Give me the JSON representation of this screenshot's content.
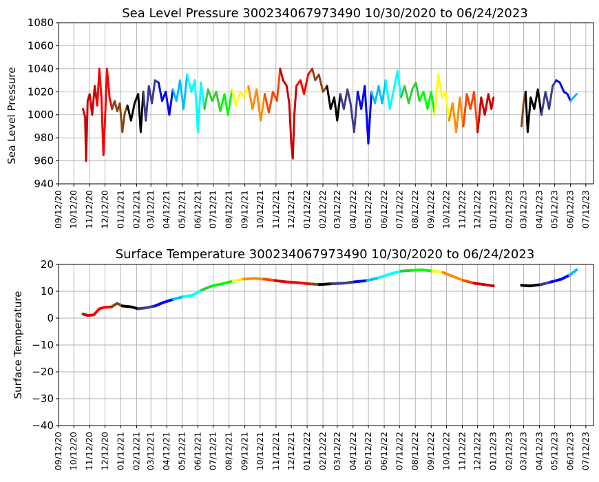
{
  "chart_data": [
    {
      "type": "line",
      "title": "Sea Level Pressure 300234067973490  10/30/2020 to 06/24/2023",
      "xlabel": "",
      "ylabel": "Sea Level Pressure",
      "xlim": [
        "09/12/20",
        "07/27/23"
      ],
      "ylim": [
        940,
        1080
      ],
      "yticks": [
        940,
        960,
        980,
        1000,
        1020,
        1040,
        1060,
        1080
      ],
      "xtick_labels": [
        "09/12/20",
        "10/12/20",
        "11/12/20",
        "12/12/20",
        "01/12/21",
        "02/12/21",
        "03/12/21",
        "04/12/21",
        "05/12/21",
        "06/12/21",
        "07/12/21",
        "08/12/21",
        "09/12/21",
        "10/12/21",
        "11/12/21",
        "12/12/21",
        "01/12/22",
        "02/12/22",
        "03/12/22",
        "04/12/22",
        "05/12/22",
        "06/12/22",
        "07/12/22",
        "08/12/22",
        "09/12/22",
        "10/12/22",
        "11/12/22",
        "12/12/22",
        "01/12/23",
        "02/12/23",
        "03/12/23",
        "04/12/23",
        "05/12/23",
        "06/12/23",
        "07/12/23"
      ],
      "grid": true,
      "series_colors": [
        "#cc0000",
        "#ff0000",
        "#8b4513",
        "#000000",
        "#3b3b8f",
        "#0000ff",
        "#00bfff",
        "#00ffff",
        "#32cd32",
        "#00ff00",
        "#ffff00",
        "#ff8c00",
        "#ff4500"
      ],
      "points": [
        [
          "10/30/20",
          1005
        ],
        [
          "11/03/20",
          998
        ],
        [
          "11/05/20",
          960
        ],
        [
          "11/08/20",
          1012
        ],
        [
          "11/12/20",
          1018
        ],
        [
          "11/17/20",
          1000
        ],
        [
          "11/22/20",
          1025
        ],
        [
          "11/27/20",
          1008
        ],
        [
          "12/01/20",
          1040
        ],
        [
          "12/05/20",
          1015
        ],
        [
          "12/09/20",
          965
        ],
        [
          "12/12/20",
          995
        ],
        [
          "12/16/20",
          1040
        ],
        [
          "12/21/20",
          1015
        ],
        [
          "12/26/20",
          1005
        ],
        [
          "12/31/20",
          1012
        ],
        [
          "01/05/21",
          1003
        ],
        [
          "01/10/21",
          1010
        ],
        [
          "01/15/21",
          985
        ],
        [
          "01/20/21",
          1002
        ],
        [
          "01/25/21",
          1008
        ],
        [
          "02/01/21",
          995
        ],
        [
          "02/08/21",
          1010
        ],
        [
          "02/15/21",
          1018
        ],
        [
          "02/20/21",
          985
        ],
        [
          "02/25/21",
          1020
        ],
        [
          "03/02/21",
          995
        ],
        [
          "03/08/21",
          1025
        ],
        [
          "03/14/21",
          1010
        ],
        [
          "03/20/21",
          1030
        ],
        [
          "03/27/21",
          1028
        ],
        [
          "04/03/21",
          1012
        ],
        [
          "04/10/21",
          1020
        ],
        [
          "04/17/21",
          1000
        ],
        [
          "04/24/21",
          1022
        ],
        [
          "05/01/21",
          1012
        ],
        [
          "05/08/21",
          1030
        ],
        [
          "05/15/21",
          1005
        ],
        [
          "05/22/21",
          1035
        ],
        [
          "05/30/21",
          1020
        ],
        [
          "06/06/21",
          1030
        ],
        [
          "06/12/21",
          985
        ],
        [
          "06/18/21",
          1028
        ],
        [
          "06/25/21",
          1005
        ],
        [
          "07/02/21",
          1022
        ],
        [
          "07/10/21",
          1012
        ],
        [
          "07/18/21",
          1020
        ],
        [
          "07/26/21",
          1003
        ],
        [
          "08/03/21",
          1018
        ],
        [
          "08/10/21",
          1000
        ],
        [
          "08/18/21",
          1022
        ],
        [
          "08/26/21",
          1008
        ],
        [
          "09/03/21",
          1020
        ],
        [
          "09/11/21",
          1015
        ],
        [
          "09/19/21",
          1025
        ],
        [
          "09/27/21",
          1005
        ],
        [
          "10/05/21",
          1022
        ],
        [
          "10/13/21",
          995
        ],
        [
          "10/21/21",
          1018
        ],
        [
          "10/29/21",
          1002
        ],
        [
          "11/06/21",
          1020
        ],
        [
          "11/14/21",
          1012
        ],
        [
          "11/20/21",
          1040
        ],
        [
          "11/26/21",
          1030
        ],
        [
          "12/03/21",
          1025
        ],
        [
          "12/08/21",
          1010
        ],
        [
          "12/12/21",
          975
        ],
        [
          "12/15/21",
          962
        ],
        [
          "12/18/21",
          1000
        ],
        [
          "12/22/21",
          1025
        ],
        [
          "12/30/21",
          1030
        ],
        [
          "01/06/22",
          1018
        ],
        [
          "01/14/22",
          1035
        ],
        [
          "01/22/22",
          1040
        ],
        [
          "01/28/22",
          1030
        ],
        [
          "02/04/22",
          1035
        ],
        [
          "02/12/22",
          1020
        ],
        [
          "02/20/22",
          1025
        ],
        [
          "02/27/22",
          1005
        ],
        [
          "03/06/22",
          1015
        ],
        [
          "03/12/22",
          995
        ],
        [
          "03/18/22",
          1018
        ],
        [
          "03/25/22",
          1005
        ],
        [
          "04/01/22",
          1022
        ],
        [
          "04/07/22",
          1010
        ],
        [
          "04/14/22",
          985
        ],
        [
          "04/21/22",
          1020
        ],
        [
          "04/28/22",
          1005
        ],
        [
          "05/05/22",
          1025
        ],
        [
          "05/12/22",
          975
        ],
        [
          "05/18/22",
          1020
        ],
        [
          "05/25/22",
          1010
        ],
        [
          "06/01/22",
          1025
        ],
        [
          "06/08/22",
          1010
        ],
        [
          "06/15/22",
          1030
        ],
        [
          "06/23/22",
          1005
        ],
        [
          "07/01/22",
          1022
        ],
        [
          "07/08/22",
          1038
        ],
        [
          "07/15/22",
          1015
        ],
        [
          "07/22/22",
          1025
        ],
        [
          "07/30/22",
          1010
        ],
        [
          "08/06/22",
          1022
        ],
        [
          "08/13/22",
          1028
        ],
        [
          "08/20/22",
          1012
        ],
        [
          "08/28/22",
          1020
        ],
        [
          "09/05/22",
          1005
        ],
        [
          "09/12/22",
          1020
        ],
        [
          "09/19/22",
          1000
        ],
        [
          "09/26/22",
          1035
        ],
        [
          "10/03/22",
          1015
        ],
        [
          "10/10/22",
          1020
        ],
        [
          "10/17/22",
          995
        ],
        [
          "10/24/22",
          1010
        ],
        [
          "10/31/22",
          985
        ],
        [
          "11/07/22",
          1015
        ],
        [
          "11/14/22",
          990
        ],
        [
          "11/21/22",
          1018
        ],
        [
          "11/28/22",
          1005
        ],
        [
          "12/05/22",
          1020
        ],
        [
          "12/12/22",
          985
        ],
        [
          "12/19/22",
          1015
        ],
        [
          "12/26/22",
          1000
        ],
        [
          "01/02/23",
          1018
        ],
        [
          "01/08/23",
          1005
        ],
        [
          "01/12/23",
          1015
        ],
        [
          "03/08/23",
          990
        ],
        [
          "03/12/23",
          1010
        ],
        [
          "03/16/23",
          1020
        ],
        [
          "03/20/23",
          985
        ],
        [
          "03/26/23",
          1015
        ],
        [
          "04/02/23",
          1005
        ],
        [
          "04/09/23",
          1022
        ],
        [
          "04/16/23",
          1000
        ],
        [
          "04/24/23",
          1020
        ],
        [
          "05/01/23",
          1005
        ],
        [
          "05/08/23",
          1025
        ],
        [
          "05/15/23",
          1030
        ],
        [
          "05/22/23",
          1028
        ],
        [
          "05/30/23",
          1020
        ],
        [
          "06/06/23",
          1018
        ],
        [
          "06/12/23",
          1012
        ],
        [
          "06/18/23",
          1015
        ],
        [
          "06/24/23",
          1018
        ]
      ]
    },
    {
      "type": "line",
      "title": "Surface Temperature 300234067973490  10/30/2020 to 06/24/2023",
      "xlabel": "",
      "ylabel": "Surface Temperature",
      "xlim": [
        "09/12/20",
        "07/27/23"
      ],
      "ylim": [
        -40,
        20
      ],
      "yticks": [
        -40,
        -30,
        -20,
        -10,
        0,
        10,
        20
      ],
      "xtick_labels": [
        "09/12/20",
        "10/12/20",
        "11/12/20",
        "12/12/20",
        "01/12/21",
        "02/12/21",
        "03/12/21",
        "04/12/21",
        "05/12/21",
        "06/12/21",
        "07/12/21",
        "08/12/21",
        "09/12/21",
        "10/12/21",
        "11/12/21",
        "12/12/21",
        "01/12/22",
        "02/12/22",
        "03/12/22",
        "04/12/22",
        "05/12/22",
        "06/12/22",
        "07/12/22",
        "08/12/22",
        "09/12/22",
        "10/12/22",
        "11/12/22",
        "12/12/22",
        "01/12/23",
        "02/12/23",
        "03/12/23",
        "04/12/23",
        "05/12/23",
        "06/12/23",
        "07/12/23"
      ],
      "grid": true,
      "series_colors": [
        "#cc0000",
        "#ff0000",
        "#8b4513",
        "#000000",
        "#3b3b8f",
        "#0000ff",
        "#00bfff",
        "#00ffff",
        "#32cd32",
        "#00ff00",
        "#ffff00",
        "#ff8c00",
        "#ff4500"
      ],
      "points": [
        [
          "10/30/20",
          1.5
        ],
        [
          "11/08/20",
          1.0
        ],
        [
          "11/20/20",
          1.2
        ],
        [
          "12/01/20",
          3.5
        ],
        [
          "12/10/20",
          4.0
        ],
        [
          "12/25/20",
          4.2
        ],
        [
          "01/05/21",
          5.5
        ],
        [
          "01/15/21",
          4.5
        ],
        [
          "02/01/21",
          4.2
        ],
        [
          "02/15/21",
          3.5
        ],
        [
          "03/01/21",
          3.8
        ],
        [
          "03/20/21",
          4.5
        ],
        [
          "04/05/21",
          5.8
        ],
        [
          "04/25/21",
          7.0
        ],
        [
          "05/15/21",
          8.0
        ],
        [
          "06/01/21",
          8.5
        ],
        [
          "06/20/21",
          10.5
        ],
        [
          "07/10/21",
          12.0
        ],
        [
          "07/30/21",
          12.8
        ],
        [
          "08/20/21",
          13.8
        ],
        [
          "09/10/21",
          14.5
        ],
        [
          "10/01/21",
          14.8
        ],
        [
          "10/20/21",
          14.5
        ],
        [
          "11/10/21",
          14.0
        ],
        [
          "12/01/21",
          13.5
        ],
        [
          "12/25/21",
          13.2
        ],
        [
          "01/15/22",
          12.8
        ],
        [
          "02/05/22",
          12.5
        ],
        [
          "03/01/22",
          12.8
        ],
        [
          "03/25/22",
          13.0
        ],
        [
          "04/15/22",
          13.5
        ],
        [
          "05/10/22",
          14.0
        ],
        [
          "06/01/22",
          15.0
        ],
        [
          "06/25/22",
          16.5
        ],
        [
          "07/15/22",
          17.5
        ],
        [
          "08/05/22",
          17.8
        ],
        [
          "08/25/22",
          18.0
        ],
        [
          "09/15/22",
          17.5
        ],
        [
          "10/05/22",
          17.0
        ],
        [
          "10/25/22",
          15.5
        ],
        [
          "11/15/22",
          14.0
        ],
        [
          "12/05/22",
          13.0
        ],
        [
          "12/25/22",
          12.5
        ],
        [
          "01/12/23",
          12.0
        ],
        [
          "03/08/23",
          12.2
        ],
        [
          "03/25/23",
          12.0
        ],
        [
          "04/15/23",
          12.5
        ],
        [
          "05/05/23",
          13.5
        ],
        [
          "05/25/23",
          14.5
        ],
        [
          "06/10/23",
          16.0
        ],
        [
          "06/24/23",
          18.0
        ]
      ]
    }
  ]
}
